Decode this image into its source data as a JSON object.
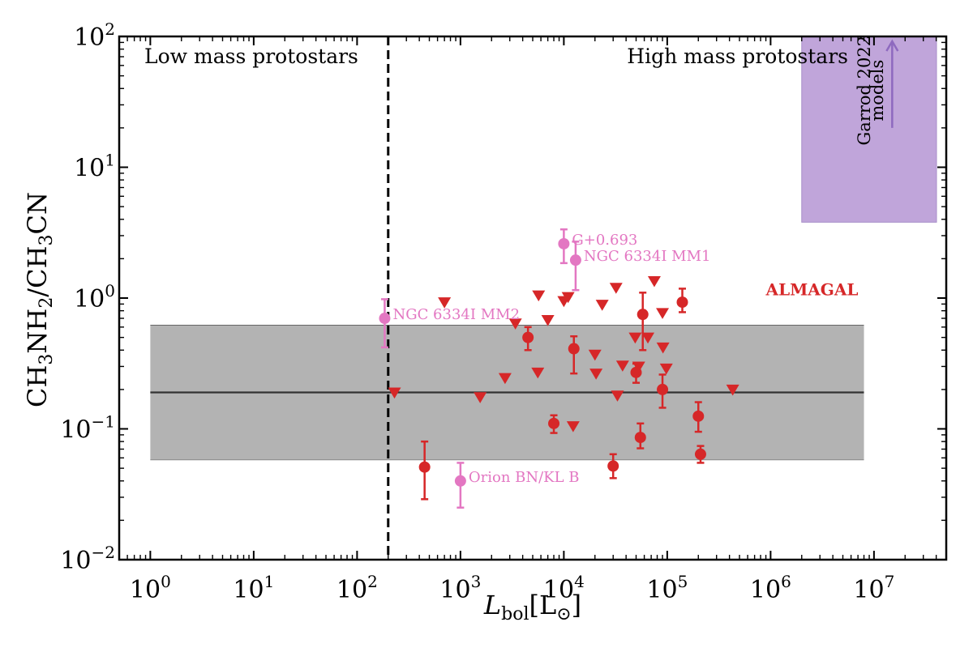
{
  "chart_data": {
    "type": "scatter",
    "xscale": "log",
    "yscale": "log",
    "xlim": [
      0.5,
      50000000
    ],
    "ylim": [
      0.01,
      100
    ],
    "xlabel": {
      "main": "L",
      "sub": "bol",
      "unit": "[L",
      "unit_sub": "⊙",
      "unit_close": "]"
    },
    "ylabel": {
      "p1": "CH",
      "s1": "3",
      "p2": "NH",
      "s2": "2",
      "p3": "/CH",
      "s3": "3",
      "p4": "CN"
    },
    "x_ticks": [
      {
        "value": 1,
        "base": "10",
        "exp": "0"
      },
      {
        "value": 10,
        "base": "10",
        "exp": "1"
      },
      {
        "value": 100,
        "base": "10",
        "exp": "2"
      },
      {
        "value": 1000,
        "base": "10",
        "exp": "3"
      },
      {
        "value": 10000,
        "base": "10",
        "exp": "4"
      },
      {
        "value": 100000,
        "base": "10",
        "exp": "5"
      },
      {
        "value": 1000000,
        "base": "10",
        "exp": "6"
      },
      {
        "value": 10000000,
        "base": "10",
        "exp": "7"
      }
    ],
    "y_ticks": [
      {
        "value": 0.01,
        "base": "10",
        "exp": "−2"
      },
      {
        "value": 0.1,
        "base": "10",
        "exp": "−1"
      },
      {
        "value": 1,
        "base": "10",
        "exp": "0"
      },
      {
        "value": 10,
        "base": "10",
        "exp": "1"
      },
      {
        "value": 100,
        "base": "10",
        "exp": "2"
      }
    ],
    "divider": {
      "x": 200,
      "style": "dashed"
    },
    "region_labels": {
      "left": "Low mass protostars",
      "right": "High mass protostars"
    },
    "shaded_band": {
      "x_range": [
        1,
        8000000
      ],
      "y_range": [
        0.058,
        0.62
      ],
      "median": 0.19,
      "color": "#b3b3b3"
    },
    "models": {
      "label_line1": "Garrod 2022",
      "label_line2": "models",
      "x_range": [
        2000000,
        45000000
      ],
      "y_range": [
        3.8,
        100
      ],
      "arrow_x": 15000000,
      "arrow_y_range": [
        20,
        100
      ],
      "color": "#c0a5da",
      "arrow_color": "#8e6abf"
    },
    "almagal": {
      "label": "ALMAGAL",
      "label_position": {
        "x": 900000,
        "y": 1.05
      },
      "color": "#d62728",
      "detections": [
        {
          "x": 450,
          "y": 0.051,
          "lo": 0.029,
          "hi": 0.08
        },
        {
          "x": 4500,
          "y": 0.5,
          "lo": 0.4,
          "hi": 0.6
        },
        {
          "x": 8000,
          "y": 0.11,
          "lo": 0.093,
          "hi": 0.127
        },
        {
          "x": 12500,
          "y": 0.41,
          "lo": 0.265,
          "hi": 0.51
        },
        {
          "x": 30000,
          "y": 0.052,
          "lo": 0.042,
          "hi": 0.064
        },
        {
          "x": 50000,
          "y": 0.27,
          "lo": 0.225,
          "hi": 0.315
        },
        {
          "x": 55000,
          "y": 0.086,
          "lo": 0.071,
          "hi": 0.11
        },
        {
          "x": 58000,
          "y": 0.75,
          "lo": 0.4,
          "hi": 1.1
        },
        {
          "x": 90000,
          "y": 0.2,
          "lo": 0.145,
          "hi": 0.26
        },
        {
          "x": 140000,
          "y": 0.93,
          "lo": 0.78,
          "hi": 1.18
        },
        {
          "x": 200000,
          "y": 0.125,
          "lo": 0.095,
          "hi": 0.16
        },
        {
          "x": 210000,
          "y": 0.064,
          "lo": 0.055,
          "hi": 0.074
        }
      ],
      "upper_limits": [
        {
          "x": 230,
          "y": 0.19
        },
        {
          "x": 700,
          "y": 0.93
        },
        {
          "x": 1550,
          "y": 0.175
        },
        {
          "x": 2700,
          "y": 0.245
        },
        {
          "x": 3400,
          "y": 0.64
        },
        {
          "x": 5600,
          "y": 0.27
        },
        {
          "x": 5700,
          "y": 1.05
        },
        {
          "x": 7000,
          "y": 0.68
        },
        {
          "x": 10000,
          "y": 0.95
        },
        {
          "x": 11000,
          "y": 1.02
        },
        {
          "x": 12300,
          "y": 0.105
        },
        {
          "x": 20000,
          "y": 0.37
        },
        {
          "x": 20500,
          "y": 0.265
        },
        {
          "x": 23500,
          "y": 0.89
        },
        {
          "x": 32000,
          "y": 1.2
        },
        {
          "x": 33000,
          "y": 0.18
        },
        {
          "x": 37000,
          "y": 0.305
        },
        {
          "x": 49000,
          "y": 0.5
        },
        {
          "x": 53000,
          "y": 0.3
        },
        {
          "x": 65000,
          "y": 0.5
        },
        {
          "x": 75000,
          "y": 1.35
        },
        {
          "x": 90000,
          "y": 0.77
        },
        {
          "x": 91000,
          "y": 0.42
        },
        {
          "x": 98000,
          "y": 0.29
        },
        {
          "x": 430000,
          "y": 0.2
        }
      ]
    },
    "literature_sources": {
      "color": "#e377c2",
      "points": [
        {
          "name": "NGC 6334I MM2",
          "x": 185,
          "y": 0.7,
          "lo": 0.42,
          "hi": 0.98
        },
        {
          "name": "Orion BN/KL B",
          "x": 1000,
          "y": 0.04,
          "lo": 0.025,
          "hi": 0.055
        },
        {
          "name": "G+0.693",
          "x": 10000,
          "y": 2.6,
          "lo": 1.85,
          "hi": 3.35
        },
        {
          "name": "NGC 6334I MM1",
          "x": 13000,
          "y": 1.95,
          "lo": 1.15,
          "hi": 2.7
        }
      ]
    }
  }
}
